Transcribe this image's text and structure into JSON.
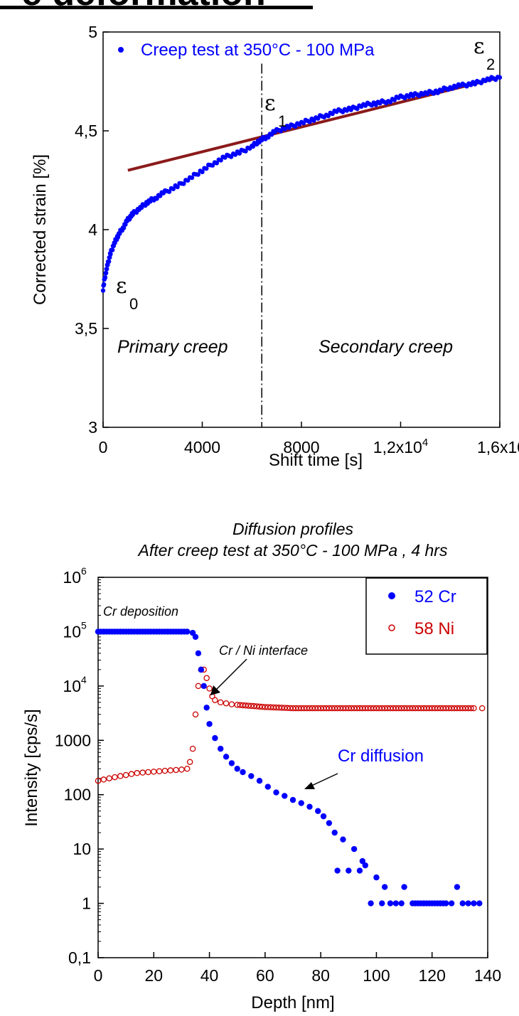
{
  "header_fragment": "e deformation",
  "chart_data": [
    {
      "type": "scatter",
      "title": "",
      "xlabel": "Shift time [s]",
      "ylabel": "Corrected strain [%]",
      "xlim": [
        0,
        16000
      ],
      "ylim": [
        3,
        5
      ],
      "x_ticks": [
        "0",
        "4000",
        "8000",
        "1,2x10",
        "1,6x10"
      ],
      "x_tick_exponents": [
        "",
        "",
        "",
        "4",
        ""
      ],
      "y_ticks": [
        "3",
        "3,5",
        "4",
        "4,5",
        "5"
      ],
      "legend": [
        "Creep test at 350°C - 100 MPa"
      ],
      "legend_position": "top-left",
      "series": [
        {
          "name": "Creep test at 350°C - 100 MPa",
          "color": "#0000ff",
          "x": [
            0,
            100,
            200,
            300,
            450,
            600,
            800,
            1000,
            1200,
            1500,
            1800,
            2100,
            2500,
            3000,
            3500,
            4000,
            4500,
            5000,
            5500,
            6000,
            6300,
            6600,
            7000,
            7500,
            8000,
            8500,
            9000,
            9500,
            10000,
            10500,
            11000,
            11500,
            12000,
            12500,
            13000,
            13500,
            14000,
            14500,
            15000,
            15500,
            16000
          ],
          "y": [
            3.7,
            3.78,
            3.83,
            3.88,
            3.93,
            3.97,
            4.01,
            4.05,
            4.08,
            4.11,
            4.14,
            4.16,
            4.19,
            4.22,
            4.26,
            4.3,
            4.34,
            4.37,
            4.39,
            4.42,
            4.45,
            4.47,
            4.5,
            4.52,
            4.54,
            4.56,
            4.58,
            4.6,
            4.61,
            4.63,
            4.64,
            4.65,
            4.67,
            4.68,
            4.69,
            4.7,
            4.72,
            4.73,
            4.74,
            4.76,
            4.77
          ]
        }
      ],
      "fit_line": {
        "color": "#8b1a1a",
        "x": [
          1000,
          16000
        ],
        "y": [
          4.3,
          4.77
        ]
      },
      "divider_x": 6400,
      "annotations": {
        "primary": "Primary creep",
        "secondary": "Secondary creep",
        "eps_symbol": "ε",
        "eps0_sub": "0",
        "eps1_sub": "1",
        "eps2_sub": "2"
      }
    },
    {
      "type": "scatter",
      "title": "Diffusion profiles",
      "subtitle": "After creep test at 350°C - 100 MPa , 4 hrs",
      "xlabel": "Depth [nm]",
      "ylabel": "Intensity [cps/s]",
      "xlim": [
        0,
        140
      ],
      "ylim": [
        0.1,
        1000000
      ],
      "yscale": "log",
      "x_ticks": [
        "0",
        "20",
        "40",
        "60",
        "80",
        "100",
        "120",
        "140"
      ],
      "y_ticks": [
        {
          "base": "0,1",
          "exp": ""
        },
        {
          "base": "1",
          "exp": ""
        },
        {
          "base": "10",
          "exp": ""
        },
        {
          "base": "100",
          "exp": ""
        },
        {
          "base": "1000",
          "exp": ""
        },
        {
          "base": "10",
          "exp": "4"
        },
        {
          "base": "10",
          "exp": "5"
        },
        {
          "base": "10",
          "exp": "6"
        }
      ],
      "legend": [
        "52 Cr",
        "58 Ni"
      ],
      "legend_position": "top-right",
      "series": [
        {
          "name": "52 Cr",
          "color": "#0000ff",
          "marker": "filled-circle",
          "x": [
            0,
            4,
            8,
            12,
            16,
            20,
            24,
            28,
            32,
            34,
            35,
            36,
            37,
            38,
            39,
            40,
            42,
            44,
            46,
            48,
            50,
            52,
            55,
            58,
            61,
            64,
            67,
            70,
            73,
            76,
            79,
            81,
            83,
            85,
            86,
            88,
            90,
            92,
            94,
            95,
            96,
            98,
            100,
            102,
            103,
            105,
            107,
            109,
            110,
            113,
            125,
            127,
            129,
            131,
            133,
            135,
            137
          ],
          "y": [
            100000,
            100000,
            100000,
            100000,
            100000,
            100000,
            100000,
            100000,
            100000,
            95000,
            80000,
            40000,
            20000,
            10000,
            4000,
            2000,
            1100,
            700,
            500,
            380,
            300,
            260,
            220,
            180,
            140,
            110,
            95,
            80,
            70,
            60,
            50,
            40,
            30,
            20,
            4,
            15,
            4,
            10,
            4,
            6,
            5,
            1,
            3,
            1,
            2,
            1,
            1,
            1,
            2,
            1,
            1,
            1,
            2,
            1,
            1,
            1,
            1
          ]
        },
        {
          "name": "58 Ni",
          "color": "#cc0000",
          "marker": "open-circle",
          "x": [
            0,
            2,
            4,
            6,
            8,
            10,
            12,
            14,
            16,
            18,
            20,
            22,
            24,
            26,
            28,
            30,
            32,
            33,
            34,
            35,
            36,
            37,
            38,
            39,
            40,
            41,
            42,
            44,
            46,
            48,
            50,
            55,
            60,
            65,
            70,
            75,
            80,
            85,
            90,
            95,
            100,
            105,
            110,
            115,
            120,
            125,
            130,
            135,
            138
          ],
          "y": [
            180,
            190,
            200,
            210,
            220,
            230,
            240,
            250,
            255,
            260,
            265,
            270,
            275,
            280,
            285,
            290,
            300,
            400,
            700,
            3000,
            10000,
            20000,
            20000,
            14000,
            9000,
            6500,
            5500,
            5000,
            4800,
            4600,
            4500,
            4300,
            4100,
            4000,
            3900,
            3900,
            3900,
            3900,
            3900,
            3900,
            3900,
            3900,
            3900,
            3900,
            3900,
            3900,
            3900,
            3900,
            3900
          ]
        }
      ],
      "annotations": {
        "cr_deposition": "Cr deposition",
        "interface": "Cr / Ni interface",
        "cr_diffusion": "Cr diffusion"
      }
    }
  ]
}
